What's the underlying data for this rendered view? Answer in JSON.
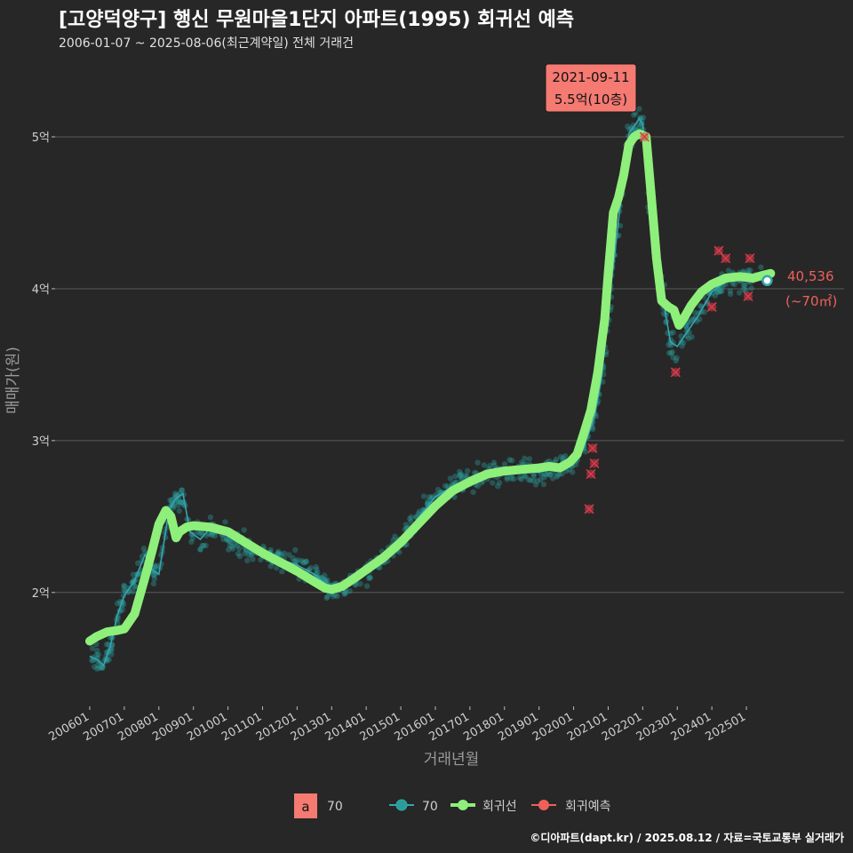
{
  "title": "[고양덕양구] 행신 무원마을1단지 아파트(1995) 회귀선 예측",
  "subtitle": "2006-01-07 ~ 2025-08-06(최근계약일) 전체 거래건",
  "caption": "©디아파트(dapt.kr) / 2025.08.12 / 자료=국토교통부 실거래가",
  "colors": {
    "background": "#272727",
    "grid": "#5a5a5a",
    "scatter": "#2a9d9a",
    "avg_line": "#33a6b2",
    "regression": "#8eef7a",
    "forecast": "#d93b4a",
    "annotation_bg": "#f47a72",
    "label": "#f0605a"
  },
  "chart_data": {
    "type": "line",
    "xlabel": "거래년월",
    "ylabel": "매매가(원)",
    "x_domain": [
      2006.0,
      2025.95
    ],
    "ylim": [
      12500,
      55500
    ],
    "y_ticks": [
      {
        "value": 20000,
        "label": "2억"
      },
      {
        "value": 30000,
        "label": "3억"
      },
      {
        "value": 40000,
        "label": "4억"
      },
      {
        "value": 50000,
        "label": "5억"
      }
    ],
    "x_ticks": [
      {
        "value": 2006.0,
        "label": "200601"
      },
      {
        "value": 2007.0,
        "label": "200701"
      },
      {
        "value": 2008.0,
        "label": "200801"
      },
      {
        "value": 2009.0,
        "label": "200901"
      },
      {
        "value": 2010.0,
        "label": "201001"
      },
      {
        "value": 2011.0,
        "label": "201101"
      },
      {
        "value": 2012.0,
        "label": "201201"
      },
      {
        "value": 2013.0,
        "label": "201301"
      },
      {
        "value": 2014.0,
        "label": "201401"
      },
      {
        "value": 2015.0,
        "label": "201501"
      },
      {
        "value": 2016.0,
        "label": "201601"
      },
      {
        "value": 2017.0,
        "label": "201701"
      },
      {
        "value": 2018.0,
        "label": "201801"
      },
      {
        "value": 2019.0,
        "label": "201901"
      },
      {
        "value": 2020.0,
        "label": "202001"
      },
      {
        "value": 2021.0,
        "label": "202101"
      },
      {
        "value": 2022.0,
        "label": "202201"
      },
      {
        "value": 2023.0,
        "label": "202301"
      },
      {
        "value": 2024.0,
        "label": "202401"
      },
      {
        "value": 2025.0,
        "label": "202501"
      }
    ],
    "series": [
      {
        "name": "70",
        "kind": "monthly-average",
        "x": [
          2006.0,
          2006.2,
          2006.4,
          2006.6,
          2006.8,
          2007.0,
          2007.3,
          2007.6,
          2007.8,
          2008.0,
          2008.3,
          2008.5,
          2008.7,
          2008.9,
          2009.2,
          2009.5,
          2010.0,
          2010.5,
          2011.0,
          2011.5,
          2012.0,
          2012.5,
          2013.0,
          2013.5,
          2014.0,
          2014.5,
          2015.0,
          2015.5,
          2016.0,
          2016.5,
          2017.0,
          2017.5,
          2018.0,
          2018.5,
          2019.0,
          2019.5,
          2020.0,
          2020.3,
          2020.6,
          2020.8,
          2021.0,
          2021.3,
          2021.6,
          2021.9,
          2022.0,
          2022.2,
          2022.5,
          2022.8,
          2023.0,
          2023.3,
          2023.6,
          2024.0,
          2024.3,
          2024.6,
          2025.0,
          2025.3,
          2025.6
        ],
        "y": [
          15800,
          15600,
          15200,
          16500,
          18500,
          19800,
          20800,
          22500,
          21500,
          21200,
          25500,
          26200,
          26500,
          24000,
          23500,
          24300,
          23800,
          23000,
          22600,
          22200,
          21800,
          21200,
          20200,
          20500,
          21400,
          22200,
          23400,
          24900,
          26300,
          27000,
          27400,
          27900,
          27800,
          28000,
          27900,
          28300,
          28700,
          29600,
          31500,
          34000,
          38500,
          44500,
          50200,
          51200,
          50800,
          46000,
          40500,
          36500,
          36200,
          37200,
          38200,
          39800,
          40300,
          40600,
          40600,
          40800,
          40500
        ]
      },
      {
        "name": "회귀선",
        "kind": "regression",
        "x": [
          2006.0,
          2006.2,
          2006.5,
          2006.8,
          2007.0,
          2007.3,
          2007.6,
          2007.8,
          2008.0,
          2008.2,
          2008.35,
          2008.5,
          2008.6,
          2008.8,
          2009.0,
          2009.5,
          2010.0,
          2010.5,
          2011.0,
          2011.5,
          2012.0,
          2012.5,
          2012.8,
          2013.0,
          2013.3,
          2013.7,
          2014.0,
          2014.5,
          2015.0,
          2015.5,
          2016.0,
          2016.5,
          2017.0,
          2017.5,
          2018.0,
          2018.5,
          2019.0,
          2019.3,
          2019.6,
          2019.9,
          2020.1,
          2020.3,
          2020.5,
          2020.7,
          2020.9,
          2021.0,
          2021.15,
          2021.3,
          2021.45,
          2021.6,
          2021.75,
          2021.9,
          2022.1,
          2022.25,
          2022.4,
          2022.55,
          2022.75,
          2022.9,
          2023.05,
          2023.2,
          2023.4,
          2023.7,
          2024.0,
          2024.4,
          2024.8,
          2025.2,
          2025.5,
          2025.7
        ],
        "y": [
          16800,
          17100,
          17400,
          17500,
          17600,
          18600,
          21000,
          22700,
          24500,
          25400,
          25000,
          23600,
          24000,
          24300,
          24400,
          24300,
          24000,
          23300,
          22600,
          22000,
          21400,
          20700,
          20300,
          20200,
          20400,
          21000,
          21500,
          22300,
          23300,
          24500,
          25700,
          26700,
          27300,
          27800,
          28000,
          28100,
          28200,
          28300,
          28200,
          28600,
          29100,
          30500,
          32000,
          34500,
          38000,
          41000,
          45000,
          46000,
          47500,
          49500,
          50000,
          50200,
          50000,
          46000,
          42000,
          39200,
          38800,
          38600,
          37600,
          38100,
          38900,
          39800,
          40300,
          40700,
          40800,
          40700,
          40900,
          41000
        ]
      },
      {
        "name": "회귀예측",
        "kind": "forecast-points",
        "x": [
          2020.45,
          2020.5,
          2020.55,
          2020.6,
          2022.05,
          2022.95,
          2024.0,
          2024.2,
          2024.4,
          2025.05,
          2025.1
        ],
        "y": [
          25500,
          27800,
          29500,
          28500,
          50000,
          34500,
          38800,
          42500,
          42000,
          39500,
          42000
        ]
      }
    ],
    "annotations": {
      "peak": {
        "date": "2021-09-11",
        "label": "5.5억(10층)",
        "x": 2021.7,
        "y": 55000
      },
      "last": {
        "value": "40,536",
        "area": "(~70㎡)",
        "x": 2025.6,
        "y": 40536
      }
    },
    "legend": [
      {
        "key": "a",
        "label": "70",
        "type": "text-key"
      },
      {
        "key": "avg",
        "label": "70",
        "type": "line-point"
      },
      {
        "key": "reg",
        "label": "회귀선",
        "type": "line-point"
      },
      {
        "key": "fc",
        "label": "회귀예측",
        "type": "line-point"
      }
    ],
    "legend_position": "bottom"
  }
}
